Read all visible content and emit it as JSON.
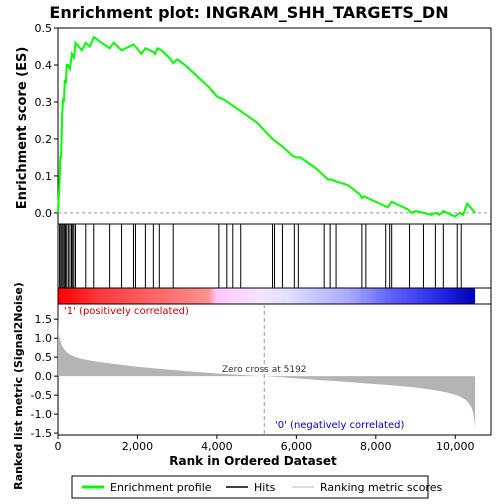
{
  "chart_data": {
    "type": "line",
    "title": "Enrichment plot: INGRAM_SHH_TARGETS_DN",
    "xlabel": "Rank in Ordered Dataset",
    "ylabel_top": "Enrichment score (ES)",
    "ylabel_bottom": "Ranked list metric (Signal2Noise)",
    "xlim": [
      0,
      10900
    ],
    "es_ylim": [
      -0.03,
      0.5
    ],
    "metric_ylim": [
      -1.55,
      1.9
    ],
    "x_ticks": [
      0,
      2000,
      4000,
      6000,
      8000,
      10000
    ],
    "x_tick_labels": [
      "0",
      "2,000",
      "4,000",
      "6,000",
      "8,000",
      "10,000"
    ],
    "es_ticks": [
      0.0,
      0.1,
      0.2,
      0.3,
      0.4,
      0.5
    ],
    "es_tick_labels": [
      "0.0",
      "0.1",
      "0.2",
      "0.3",
      "0.4",
      "0.5"
    ],
    "metric_ticks": [
      -1.5,
      -1.0,
      -0.5,
      0.0,
      0.5,
      1.0,
      1.5
    ],
    "metric_tick_labels": [
      "-1.5",
      "-1.0",
      "-0.5",
      "0.0",
      "0.5",
      "1.0",
      "1.5"
    ],
    "n_genes": 10500,
    "zero_cross": 5192,
    "zero_cross_label": "Zero cross at 5192",
    "positive_label": "'1' (positively correlated)",
    "negative_label": "'0' (negatively correlated)",
    "es_curve": {
      "x": [
        0,
        40,
        60,
        80,
        100,
        130,
        150,
        170,
        200,
        220,
        250,
        300,
        350,
        400,
        440,
        600,
        700,
        800,
        900,
        1100,
        1300,
        1400,
        1600,
        1900,
        1950,
        2100,
        2200,
        2400,
        2450,
        2500,
        2600,
        2800,
        2900,
        3000,
        3200,
        3500,
        3800,
        4000,
        4200,
        4400,
        4600,
        5000,
        5400,
        5700,
        5900,
        6000,
        6100,
        6300,
        6500,
        6700,
        6800,
        6900,
        7000,
        7300,
        7600,
        7650,
        7700,
        7800,
        8000,
        8200,
        8300,
        8400,
        8600,
        8800,
        8900,
        9000,
        9200,
        9400,
        9500,
        9600,
        9700,
        9900,
        10000,
        10100,
        10200,
        10300,
        10500
      ],
      "y": [
        0.0,
        0.09,
        0.155,
        0.15,
        0.26,
        0.31,
        0.3,
        0.36,
        0.35,
        0.4,
        0.4,
        0.39,
        0.43,
        0.42,
        0.46,
        0.44,
        0.46,
        0.45,
        0.475,
        0.46,
        0.445,
        0.46,
        0.44,
        0.455,
        0.45,
        0.43,
        0.445,
        0.435,
        0.43,
        0.445,
        0.44,
        0.42,
        0.405,
        0.415,
        0.4,
        0.37,
        0.34,
        0.315,
        0.305,
        0.29,
        0.275,
        0.245,
        0.2,
        0.175,
        0.155,
        0.15,
        0.15,
        0.135,
        0.12,
        0.1,
        0.09,
        0.09,
        0.085,
        0.075,
        0.05,
        0.04,
        0.045,
        0.04,
        0.03,
        0.02,
        0.015,
        0.03,
        0.02,
        0.01,
        0.0,
        0.005,
        0.0,
        -0.005,
        0.0,
        -0.005,
        0.005,
        -0.005,
        -0.01,
        0.0,
        -0.005,
        0.025,
        0.0
      ]
    },
    "hits": [
      40,
      70,
      100,
      130,
      160,
      190,
      220,
      260,
      300,
      340,
      370,
      400,
      440,
      700,
      900,
      1300,
      1600,
      1900,
      1950,
      2200,
      2400,
      2550,
      2900,
      4050,
      4250,
      4400,
      4600,
      5400,
      5450,
      5650,
      5950,
      6050,
      6700,
      6850,
      7000,
      7650,
      7750,
      8250,
      8350,
      8400,
      8850,
      9200,
      9500,
      9700,
      10050,
      10150
    ],
    "metric_curve": {
      "x": [
        0,
        10,
        30,
        60,
        100,
        150,
        200,
        300,
        400,
        500,
        700,
        1000,
        1500,
        2000,
        2500,
        3000,
        3500,
        4000,
        4500,
        5000,
        5192,
        5500,
        6000,
        6500,
        7000,
        7500,
        8000,
        8500,
        9000,
        9300,
        9600,
        9800,
        10000,
        10100,
        10200,
        10300,
        10400,
        10450,
        10480,
        10500
      ],
      "y": [
        1.6,
        1.2,
        1.05,
        0.92,
        0.8,
        0.72,
        0.65,
        0.57,
        0.52,
        0.48,
        0.43,
        0.38,
        0.31,
        0.25,
        0.2,
        0.15,
        0.11,
        0.07,
        0.04,
        0.01,
        0.0,
        -0.02,
        -0.06,
        -0.1,
        -0.13,
        -0.17,
        -0.21,
        -0.25,
        -0.3,
        -0.34,
        -0.39,
        -0.43,
        -0.49,
        -0.53,
        -0.58,
        -0.66,
        -0.8,
        -0.95,
        -1.15,
        -1.4
      ]
    },
    "legend": [
      {
        "label": "Enrichment profile",
        "color": "#00ff00"
      },
      {
        "label": "Hits",
        "color": "#000000"
      },
      {
        "label": "Ranking metric scores",
        "color": "#bbbbbb"
      }
    ],
    "colors": {
      "es_line": "#00ff00",
      "hit": "#000000",
      "metric_fill": "#b4b4b4",
      "positive_text": "#cc0000",
      "negative_text": "#0000cc"
    }
  }
}
